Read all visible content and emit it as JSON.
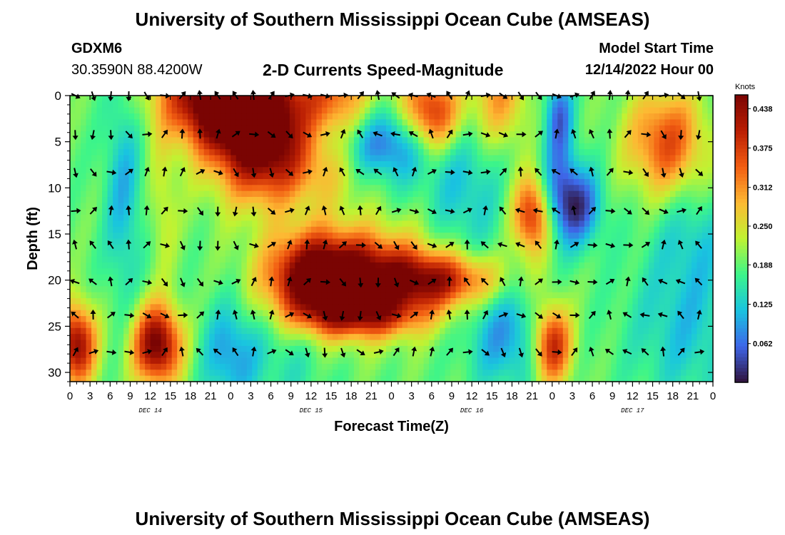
{
  "header": {
    "title": "University of Southern Mississippi Ocean Cube (AMSEAS)",
    "station": "GDXM6",
    "coords": "30.3590N  88.4200W",
    "variable": "2-D Currents Speed-Magnitude",
    "model_start_label": "Model Start Time",
    "model_start_value": "12/14/2022 Hour 00"
  },
  "footer": {
    "title": "University of Southern Mississippi Ocean Cube (AMSEAS)"
  },
  "chart_data": {
    "type": "heatmap",
    "title": "2-D Currents Speed-Magnitude",
    "xlabel": "Forecast Time(Z)",
    "ylabel": "Depth (ft)",
    "x_hours_range": [
      0,
      96
    ],
    "y_depth_range_ft": [
      0,
      31
    ],
    "x_tick_labels": [
      "0",
      "3",
      "6",
      "9",
      "12",
      "15",
      "18",
      "21",
      "0",
      "3",
      "6",
      "9",
      "12",
      "15",
      "18",
      "21",
      "0",
      "3",
      "6",
      "9",
      "12",
      "15",
      "18",
      "21",
      "0",
      "3",
      "6",
      "9",
      "12",
      "15",
      "18",
      "21",
      "0"
    ],
    "date_labels": [
      {
        "label": "DEC 14",
        "hour": 12
      },
      {
        "label": "DEC 15",
        "hour": 36
      },
      {
        "label": "DEC 16",
        "hour": 60
      },
      {
        "label": "DEC 17",
        "hour": 84
      }
    ],
    "y_ticks": [
      0,
      5,
      10,
      15,
      20,
      25,
      30
    ],
    "colorbar": {
      "unit": "Knots",
      "ticks": [
        "0.438",
        "0.375",
        "0.312",
        "0.250",
        "0.188",
        "0.125",
        "0.062"
      ],
      "tick_values": [
        0.438,
        0.375,
        0.312,
        0.25,
        0.188,
        0.125,
        0.062
      ],
      "range": [
        0.0,
        0.46
      ]
    },
    "speed_field": {
      "base": 0.19,
      "blobs": [
        {
          "t": 22,
          "d": 0,
          "st": 6,
          "sd": 3.5,
          "v": 0.28
        },
        {
          "t": 27,
          "d": 3,
          "st": 5,
          "sd": 5,
          "v": 0.26
        },
        {
          "t": 30,
          "d": 6,
          "st": 4,
          "sd": 4,
          "v": 0.1
        },
        {
          "t": 38,
          "d": 8,
          "st": 5,
          "sd": 3,
          "v": 0.08
        },
        {
          "t": 41,
          "d": 0,
          "st": 5,
          "sd": 3,
          "v": 0.18
        },
        {
          "t": 36,
          "d": 20,
          "st": 5,
          "sd": 3.5,
          "v": 0.28
        },
        {
          "t": 45,
          "d": 20,
          "st": 7,
          "sd": 3.5,
          "v": 0.24
        },
        {
          "t": 56,
          "d": 20,
          "st": 6,
          "sd": 2,
          "v": 0.18
        },
        {
          "t": 44,
          "d": 24,
          "st": 6,
          "sd": 1.5,
          "v": 0.12
        },
        {
          "t": 33,
          "d": 26,
          "st": 4,
          "sd": 6,
          "v": -0.05
        },
        {
          "t": 13,
          "d": 27,
          "st": 2.5,
          "sd": 3,
          "v": 0.28
        },
        {
          "t": 1,
          "d": 27,
          "st": 2,
          "sd": 3,
          "v": 0.25
        },
        {
          "t": 14,
          "d": 12,
          "st": 1.5,
          "sd": 5,
          "v": 0.05
        },
        {
          "t": 8,
          "d": 10,
          "st": 2,
          "sd": 9,
          "v": -0.08
        },
        {
          "t": 24,
          "d": 28,
          "st": 3,
          "sd": 4,
          "v": -0.1
        },
        {
          "t": 47,
          "d": 5,
          "st": 5,
          "sd": 3,
          "v": -0.15
        },
        {
          "t": 44,
          "d": 0,
          "st": 3,
          "sd": 2,
          "v": -0.06
        },
        {
          "t": 54,
          "d": 2,
          "st": 3,
          "sd": 3,
          "v": 0.22
        },
        {
          "t": 59,
          "d": 10,
          "st": 4,
          "sd": 6,
          "v": -0.07
        },
        {
          "t": 64,
          "d": 0,
          "st": 3,
          "sd": 4,
          "v": 0.12
        },
        {
          "t": 69,
          "d": 13,
          "st": 2,
          "sd": 3,
          "v": 0.2
        },
        {
          "t": 73,
          "d": 10,
          "st": 2,
          "sd": 4,
          "v": -0.1
        },
        {
          "t": 76,
          "d": 12,
          "st": 2.5,
          "sd": 3,
          "v": -0.14
        },
        {
          "t": 73,
          "d": 2,
          "st": 1.5,
          "sd": 3,
          "v": -0.12
        },
        {
          "t": 72,
          "d": 27,
          "st": 2,
          "sd": 3,
          "v": 0.22
        },
        {
          "t": 65,
          "d": 26,
          "st": 4,
          "sd": 4,
          "v": -0.1
        },
        {
          "t": 89,
          "d": 5,
          "st": 4,
          "sd": 4,
          "v": 0.17
        },
        {
          "t": 93,
          "d": 15,
          "st": 4,
          "sd": 4,
          "v": -0.05
        },
        {
          "t": 92,
          "d": 25,
          "st": 6,
          "sd": 6,
          "v": -0.07
        }
      ]
    },
    "vectors": {
      "depths_ft": [
        0,
        4.2,
        8.3,
        12.5,
        16.2,
        20.2,
        23.8,
        27.8
      ],
      "time_step_hours": 2.66
    }
  },
  "colors": {
    "ramp": [
      "#30123b",
      "#3e66e8",
      "#19c4e0",
      "#3cf58a",
      "#c0f332",
      "#fdb933",
      "#f25d12",
      "#ba1e03",
      "#7a0403"
    ],
    "arrow": "#000000"
  }
}
